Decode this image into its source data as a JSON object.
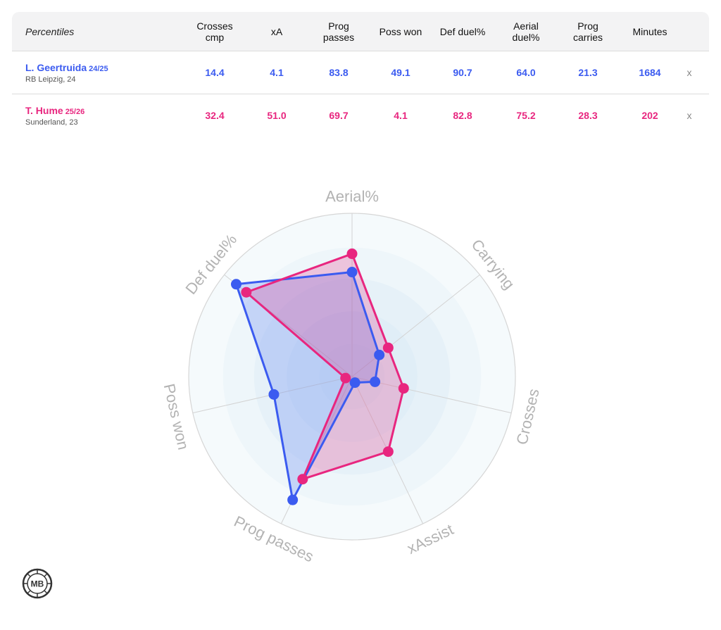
{
  "table": {
    "header_label": "Percentiles",
    "columns": [
      {
        "line1": "Crosses",
        "line2": "cmp"
      },
      {
        "line1": "xA",
        "line2": ""
      },
      {
        "line1": "Prog",
        "line2": "passes"
      },
      {
        "line1": "Poss won",
        "line2": ""
      },
      {
        "line1": "Def duel%",
        "line2": ""
      },
      {
        "line1": "Aerial",
        "line2": "duel%"
      },
      {
        "line1": "Prog",
        "line2": "carries"
      },
      {
        "line1": "Minutes",
        "line2": ""
      }
    ],
    "players": [
      {
        "name": "L. Geertruida",
        "season": "24/25",
        "club": "RB Leipzig, 24",
        "color": "#3b5bf0",
        "values": [
          "14.4",
          "4.1",
          "83.8",
          "49.1",
          "90.7",
          "64.0",
          "21.3",
          "1684"
        ],
        "remove": "x"
      },
      {
        "name": "T. Hume",
        "season": "25/26",
        "club": "Sunderland, 23",
        "color": "#e8267f",
        "values": [
          "32.4",
          "51.0",
          "69.7",
          "4.1",
          "82.8",
          "75.2",
          "28.3",
          "202"
        ],
        "remove": "x"
      }
    ]
  },
  "chart_data": {
    "type": "radar",
    "axes": [
      "Aerial%",
      "Carrying",
      "Crosses",
      "xAssist",
      "Prog passes",
      "Poss won",
      "Def duel%"
    ],
    "range": [
      0,
      100
    ],
    "series": [
      {
        "name": "L. Geertruida",
        "color": "#3b5bf0",
        "values": [
          64.0,
          21.3,
          14.4,
          4.1,
          83.8,
          49.1,
          90.7
        ]
      },
      {
        "name": "T. Hume",
        "color": "#e8267f",
        "values": [
          75.2,
          28.3,
          32.4,
          51.0,
          69.7,
          4.1,
          82.8
        ]
      }
    ]
  },
  "logo": {
    "text": "MB"
  }
}
